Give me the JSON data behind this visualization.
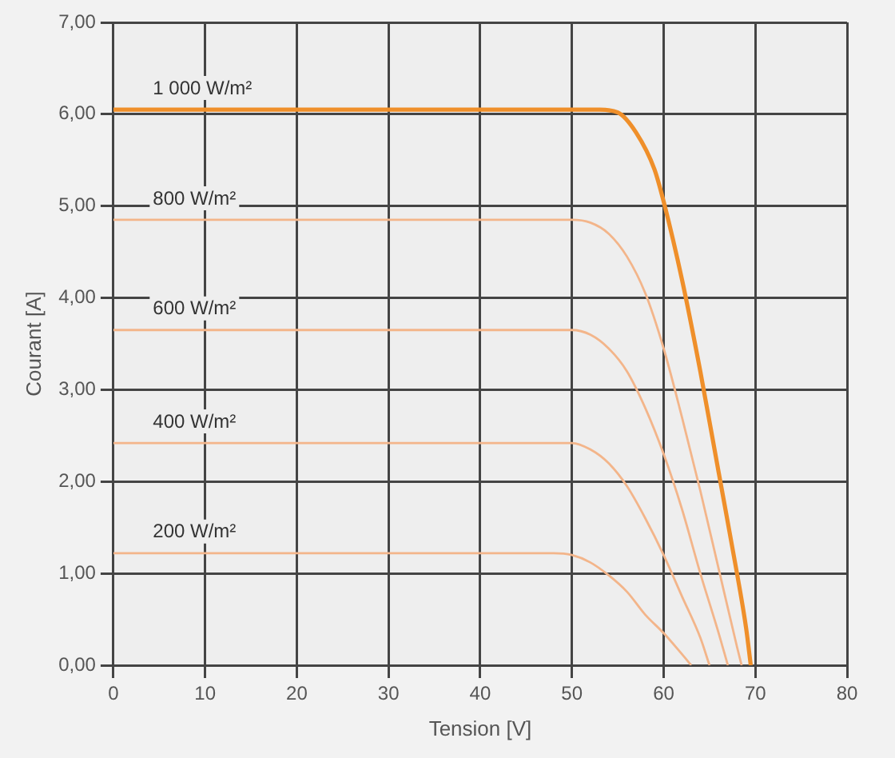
{
  "chart_data": {
    "type": "line",
    "xlabel": "Tension [V]",
    "ylabel": "Courant [A]",
    "xlim": [
      0,
      80
    ],
    "xticks": [
      0,
      10,
      20,
      30,
      40,
      50,
      60,
      70,
      80
    ],
    "ylim": [
      0,
      7
    ],
    "yticks": [
      {
        "value": 0,
        "label": "0,00"
      },
      {
        "value": 1,
        "label": "1,00"
      },
      {
        "value": 2,
        "label": "2,00"
      },
      {
        "value": 3,
        "label": "3,00"
      },
      {
        "value": 4,
        "label": "4,00"
      },
      {
        "value": 5,
        "label": "5,00"
      },
      {
        "value": 6,
        "label": "6,00"
      },
      {
        "value": 7,
        "label": "7,00"
      }
    ],
    "grid": true,
    "legend": false,
    "marker": "none",
    "line_style": "solid",
    "series": [
      {
        "name": "1 000 W/m²",
        "color": "#ef8f2a",
        "x": [
          0,
          53,
          55,
          57,
          59,
          60,
          62,
          64,
          66,
          68,
          69,
          69.5
        ],
        "values": [
          6.05,
          6.05,
          6.02,
          5.8,
          5.4,
          5.05,
          4.2,
          3.2,
          2.1,
          1.0,
          0.4,
          0
        ]
      },
      {
        "name": "800 W/m²",
        "color": "#f3b58a",
        "x": [
          0,
          50,
          52,
          54,
          56,
          58,
          60,
          62,
          64,
          66,
          68,
          68.5
        ],
        "values": [
          4.85,
          4.85,
          4.82,
          4.7,
          4.45,
          4.05,
          3.45,
          2.7,
          1.9,
          1.05,
          0.2,
          0
        ]
      },
      {
        "name": "600 W/m²",
        "color": "#f3b58a",
        "x": [
          0,
          50,
          52,
          54,
          56,
          58,
          60,
          62,
          64,
          66,
          67
        ],
        "values": [
          3.65,
          3.65,
          3.6,
          3.45,
          3.2,
          2.8,
          2.3,
          1.7,
          1.0,
          0.35,
          0
        ]
      },
      {
        "name": "400 W/m²",
        "color": "#f3b58a",
        "x": [
          0,
          50,
          52,
          54,
          56,
          58,
          60,
          62,
          64,
          65
        ],
        "values": [
          2.42,
          2.42,
          2.35,
          2.2,
          1.95,
          1.6,
          1.2,
          0.75,
          0.3,
          0
        ]
      },
      {
        "name": "200 W/m²",
        "color": "#f3b58a",
        "x": [
          0,
          48,
          50,
          52,
          54,
          56,
          58,
          60,
          62,
          63
        ],
        "values": [
          1.22,
          1.22,
          1.2,
          1.12,
          0.98,
          0.8,
          0.55,
          0.35,
          0.12,
          0
        ]
      }
    ]
  }
}
